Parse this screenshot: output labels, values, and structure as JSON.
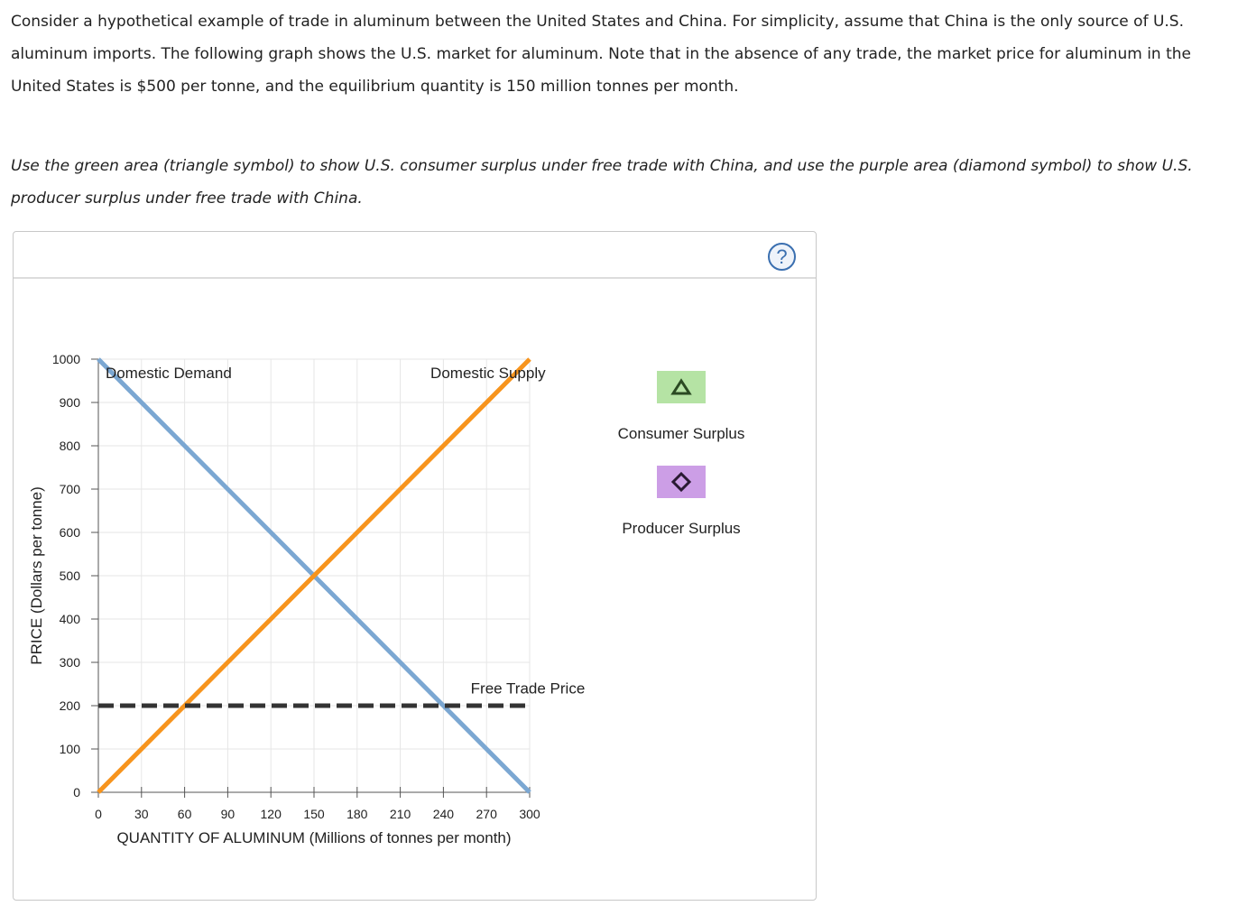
{
  "intro_text": "Consider a hypothetical example of trade in aluminum between the United States and China. For simplicity, assume that China is the only source of U.S. aluminum imports. The following graph shows the U.S. market for aluminum. Note that in the absence of any trade, the market price for aluminum in the United States is $500 per tonne, and the equilibrium quantity is 150 million tonnes per month.",
  "instruction_text": "Use the green area (triangle symbol) to show U.S. consumer surplus under free trade with China, and use the purple area (diamond symbol) to show U.S. producer surplus under free trade with China.",
  "help_label": "?",
  "legend": [
    {
      "label": "Consumer Surplus",
      "symbol": "triangle",
      "color": "#b5e3a4",
      "symbol_color": "#2a4a22"
    },
    {
      "label": "Producer Surplus",
      "symbol": "diamond",
      "color": "#cc9ee6",
      "symbol_color": "#2a1a33"
    }
  ],
  "chart_data": {
    "type": "line",
    "xlabel": "QUANTITY OF ALUMINUM (Millions of tonnes per month)",
    "ylabel": "PRICE (Dollars per tonne)",
    "xlim": [
      0,
      300
    ],
    "ylim": [
      0,
      1000
    ],
    "xticks": [
      0,
      30,
      60,
      90,
      120,
      150,
      180,
      210,
      240,
      270,
      300
    ],
    "yticks": [
      0,
      100,
      200,
      300,
      400,
      500,
      600,
      700,
      800,
      900,
      1000
    ],
    "grid": true,
    "series": [
      {
        "name": "Domestic Demand",
        "color": "#7ba7d2",
        "x": [
          0,
          300
        ],
        "y": [
          1000,
          0
        ]
      },
      {
        "name": "Domestic Supply",
        "color": "#f7941d",
        "x": [
          0,
          300
        ],
        "y": [
          0,
          1000
        ]
      },
      {
        "name": "Free Trade Price",
        "color": "#333333",
        "style": "dashed",
        "x": [
          0,
          300
        ],
        "y": [
          200,
          200
        ]
      }
    ]
  }
}
